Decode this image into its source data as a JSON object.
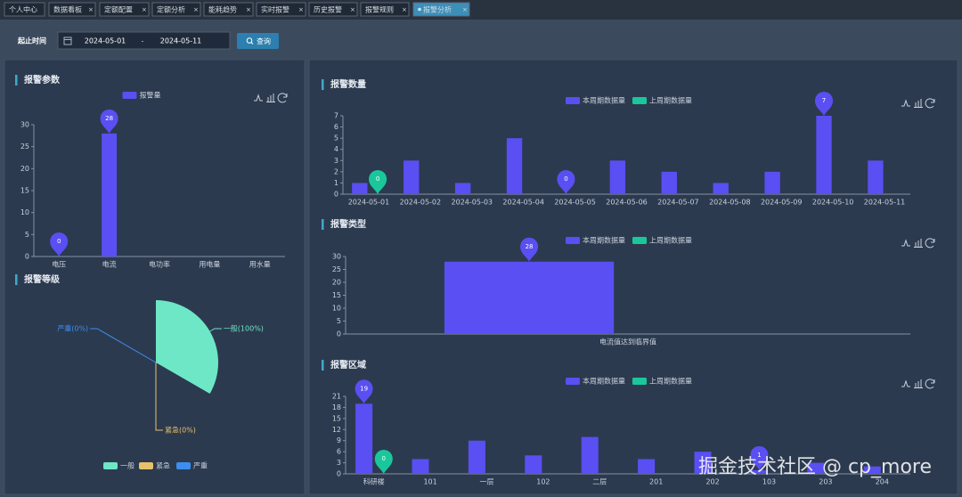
{
  "tabs": [
    "个人中心",
    "数据看板",
    "定额配置",
    "定额分析",
    "能耗趋势",
    "实时报警",
    "历史报警",
    "报警规则",
    "报警分析"
  ],
  "active_tab": 8,
  "filter": {
    "label": "起止时间",
    "start": "2024-05-01",
    "separator": "-",
    "end": "2024-05-11",
    "button": "查询"
  },
  "chart_data": [
    {
      "type": "bar",
      "title": "报警参数",
      "categories": [
        "电压",
        "电流",
        "电功率",
        "用电量",
        "用水量"
      ],
      "series": [
        {
          "name": "报警量",
          "color": "#5a4ff2",
          "values": [
            0,
            28,
            0,
            0,
            0
          ]
        }
      ],
      "ylim": [
        0,
        30
      ],
      "yticks": [
        0,
        5,
        10,
        15,
        20,
        25,
        30
      ]
    },
    {
      "type": "pie",
      "title": "报警等级",
      "rose": "area",
      "categories": [
        "一般",
        "紧急",
        "严重"
      ],
      "values": [
        100,
        0,
        0
      ],
      "value_labels": [
        "一般(100%)",
        "紧急(0%)",
        "严重(0%)"
      ],
      "colors": [
        "#6ee7c7",
        "#e6c26a",
        "#3d8ef0"
      ]
    },
    {
      "type": "bar",
      "title": "报警数量",
      "categories": [
        "2024-05-01",
        "2024-05-02",
        "2024-05-03",
        "2024-05-04",
        "2024-05-05",
        "2024-05-06",
        "2024-05-07",
        "2024-05-08",
        "2024-05-09",
        "2024-05-10",
        "2024-05-11"
      ],
      "series": [
        {
          "name": "本周期数据量",
          "color": "#5a4ff2",
          "values": [
            1,
            3,
            1,
            5,
            0,
            3,
            2,
            1,
            2,
            7,
            3
          ]
        },
        {
          "name": "上周期数据量",
          "color": "#19c79b",
          "values": [
            0,
            0,
            0,
            0,
            0,
            0,
            0,
            0,
            0,
            0,
            0
          ]
        }
      ],
      "ylim": [
        0,
        7
      ],
      "yticks": [
        0,
        1,
        2,
        3,
        4,
        5,
        6,
        7
      ]
    },
    {
      "type": "bar",
      "title": "报警类型",
      "categories": [
        "电流值达到临界值"
      ],
      "series": [
        {
          "name": "本周期数据量",
          "color": "#5a4ff2",
          "values": [
            28
          ]
        },
        {
          "name": "上周期数据量",
          "color": "#19c79b",
          "values": [
            null
          ]
        }
      ],
      "ylim": [
        0,
        30
      ],
      "yticks": [
        0,
        5,
        10,
        15,
        20,
        25,
        30
      ]
    },
    {
      "type": "bar",
      "title": "报警区域",
      "categories": [
        "科研楼",
        "101",
        "一层",
        "102",
        "二层",
        "201",
        "202",
        "103",
        "203",
        "204"
      ],
      "series": [
        {
          "name": "本周期数据量",
          "color": "#5a4ff2",
          "values": [
            19,
            4,
            9,
            5,
            10,
            4,
            6,
            1,
            3,
            2
          ]
        },
        {
          "name": "上周期数据量",
          "color": "#19c79b",
          "values": [
            0,
            0,
            0,
            0,
            0,
            0,
            0,
            0,
            0,
            0
          ]
        }
      ],
      "ylim": [
        0,
        21
      ],
      "yticks": [
        0,
        3,
        6,
        9,
        12,
        15,
        18,
        21
      ]
    }
  ],
  "watermark": "掘金技术社区 @ cp_more"
}
